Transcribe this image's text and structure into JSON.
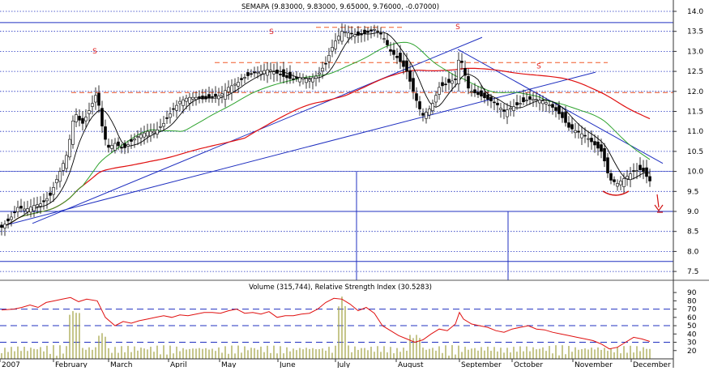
{
  "chart_data": [
    {
      "type": "candlestick",
      "title": "SEMAPA (9.83000, 9.83000, 9.65000, 9.76000, -0.07000)",
      "ylim": [
        7.4,
        14.1
      ],
      "y_ticks": [
        "14.0",
        "13.5",
        "13.0",
        "12.5",
        "12.0",
        "11.5",
        "11.0",
        "10.5",
        "10.0",
        "9.5",
        "9.0",
        "8.5",
        "8.0",
        "7.5"
      ],
      "x_tick_labels": [
        "2007",
        "February",
        "March",
        "April",
        "May",
        "June",
        "July",
        "August",
        "September",
        "October",
        "November",
        "December"
      ],
      "grid": "horizontal dotted",
      "close_series": [
        [
          0,
          8.6
        ],
        [
          10,
          8.8
        ],
        [
          20,
          9.1
        ],
        [
          30,
          9.05
        ],
        [
          40,
          9.15
        ],
        [
          50,
          9.2
        ],
        [
          60,
          9.4
        ],
        [
          70,
          9.9
        ],
        [
          80,
          10.4
        ],
        [
          85,
          10.9
        ],
        [
          90,
          11.5
        ],
        [
          95,
          11.3
        ],
        [
          100,
          11.2
        ],
        [
          110,
          11.6
        ],
        [
          118,
          12.0
        ],
        [
          122,
          11.3
        ],
        [
          128,
          10.8
        ],
        [
          132,
          10.6
        ],
        [
          140,
          10.7
        ],
        [
          150,
          10.55
        ],
        [
          160,
          10.75
        ],
        [
          170,
          10.9
        ],
        [
          180,
          11.0
        ],
        [
          190,
          11.0
        ],
        [
          200,
          11.2
        ],
        [
          210,
          11.5
        ],
        [
          220,
          11.75
        ],
        [
          230,
          11.85
        ],
        [
          240,
          11.85
        ],
        [
          250,
          11.8
        ],
        [
          260,
          11.85
        ],
        [
          270,
          11.9
        ],
        [
          280,
          12.1
        ],
        [
          290,
          12.2
        ],
        [
          300,
          12.35
        ],
        [
          310,
          12.45
        ],
        [
          320,
          12.5
        ],
        [
          330,
          12.55
        ],
        [
          340,
          12.45
        ],
        [
          350,
          12.35
        ],
        [
          360,
          12.3
        ],
        [
          370,
          12.35
        ],
        [
          380,
          12.3
        ],
        [
          390,
          12.4
        ],
        [
          400,
          12.7
        ],
        [
          410,
          13.2
        ],
        [
          420,
          13.5
        ],
        [
          430,
          13.45
        ],
        [
          440,
          13.4
        ],
        [
          450,
          13.45
        ],
        [
          460,
          13.55
        ],
        [
          470,
          13.4
        ],
        [
          480,
          13.0
        ],
        [
          490,
          12.8
        ],
        [
          500,
          12.5
        ],
        [
          508,
          12.0
        ],
        [
          515,
          11.6
        ],
        [
          520,
          11.4
        ],
        [
          530,
          11.6
        ],
        [
          540,
          12.1
        ],
        [
          550,
          12.2
        ],
        [
          560,
          12.3
        ],
        [
          565,
          12.9
        ],
        [
          570,
          12.6
        ],
        [
          575,
          12.1
        ],
        [
          580,
          12.0
        ],
        [
          590,
          11.9
        ],
        [
          600,
          11.8
        ],
        [
          610,
          11.7
        ],
        [
          620,
          11.5
        ],
        [
          630,
          11.6
        ],
        [
          640,
          11.7
        ],
        [
          650,
          11.8
        ],
        [
          660,
          11.8
        ],
        [
          670,
          11.75
        ],
        [
          680,
          11.6
        ],
        [
          690,
          11.4
        ],
        [
          700,
          11.1
        ],
        [
          710,
          11.0
        ],
        [
          720,
          10.9
        ],
        [
          730,
          10.7
        ],
        [
          740,
          10.5
        ],
        [
          745,
          10.2
        ],
        [
          750,
          9.8
        ],
        [
          755,
          9.75
        ],
        [
          760,
          9.7
        ],
        [
          770,
          9.85
        ],
        [
          780,
          10.0
        ],
        [
          790,
          10.05
        ],
        [
          795,
          9.9
        ],
        [
          800,
          9.76
        ]
      ],
      "sma_fast_label": "",
      "sma_mid_label": "",
      "sma_slow_label": "",
      "annotations": [
        {
          "text": "S",
          "x": 115,
          "y": 12.95
        },
        {
          "text": "S",
          "x": 333,
          "y": 13.43
        },
        {
          "text": "S",
          "x": 563,
          "y": 13.55
        },
        {
          "text": "S",
          "x": 663,
          "y": 12.57
        }
      ],
      "resistance_levels": [
        13.7,
        13.6,
        12.7,
        12.0
      ],
      "support_levels": [
        9.0,
        7.75
      ],
      "colors": {
        "price": "#000000",
        "ma_fast": "#000000",
        "ma_mid": "#2ea32e",
        "ma_slow": "#e01010",
        "trend": "#2030c0",
        "resistance": "#f05a28",
        "annotation": "#e02020"
      }
    },
    {
      "type": "line",
      "title": "Volume (315,744), Relative Strength Index (30.5283)",
      "ylim": [
        10,
        95
      ],
      "y_ticks": [
        "90",
        "80",
        "70",
        "60",
        "50",
        "40",
        "30",
        "20"
      ],
      "levels": [
        70,
        50,
        30
      ],
      "rsi": [
        [
          0,
          69
        ],
        [
          15,
          70
        ],
        [
          25,
          72
        ],
        [
          35,
          75
        ],
        [
          45,
          72
        ],
        [
          55,
          78
        ],
        [
          65,
          80
        ],
        [
          75,
          82
        ],
        [
          85,
          84
        ],
        [
          95,
          79
        ],
        [
          105,
          82
        ],
        [
          118,
          80
        ],
        [
          128,
          60
        ],
        [
          140,
          50
        ],
        [
          150,
          55
        ],
        [
          160,
          53
        ],
        [
          170,
          56
        ],
        [
          180,
          58
        ],
        [
          190,
          60
        ],
        [
          200,
          62
        ],
        [
          210,
          60
        ],
        [
          220,
          63
        ],
        [
          230,
          62
        ],
        [
          240,
          64
        ],
        [
          250,
          66
        ],
        [
          260,
          66
        ],
        [
          270,
          65
        ],
        [
          280,
          68
        ],
        [
          290,
          70
        ],
        [
          300,
          65
        ],
        [
          310,
          66
        ],
        [
          320,
          64
        ],
        [
          330,
          67
        ],
        [
          340,
          60
        ],
        [
          350,
          62
        ],
        [
          360,
          62
        ],
        [
          370,
          64
        ],
        [
          380,
          65
        ],
        [
          390,
          70
        ],
        [
          400,
          78
        ],
        [
          410,
          83
        ],
        [
          420,
          82
        ],
        [
          430,
          76
        ],
        [
          440,
          68
        ],
        [
          450,
          72
        ],
        [
          460,
          65
        ],
        [
          470,
          50
        ],
        [
          480,
          44
        ],
        [
          490,
          38
        ],
        [
          500,
          34
        ],
        [
          510,
          30
        ],
        [
          520,
          33
        ],
        [
          530,
          40
        ],
        [
          540,
          46
        ],
        [
          550,
          44
        ],
        [
          560,
          52
        ],
        [
          565,
          66
        ],
        [
          570,
          58
        ],
        [
          580,
          52
        ],
        [
          590,
          50
        ],
        [
          600,
          48
        ],
        [
          610,
          44
        ],
        [
          620,
          42
        ],
        [
          630,
          46
        ],
        [
          640,
          48
        ],
        [
          650,
          50
        ],
        [
          660,
          46
        ],
        [
          670,
          45
        ],
        [
          680,
          42
        ],
        [
          690,
          40
        ],
        [
          700,
          38
        ],
        [
          710,
          36
        ],
        [
          720,
          34
        ],
        [
          730,
          32
        ],
        [
          740,
          28
        ],
        [
          750,
          22
        ],
        [
          760,
          24
        ],
        [
          770,
          30
        ],
        [
          780,
          36
        ],
        [
          790,
          34
        ],
        [
          800,
          31
        ]
      ],
      "colors": {
        "rsi": "#e01010",
        "volume": "#a0a040",
        "level": "#2030c0"
      }
    }
  ]
}
